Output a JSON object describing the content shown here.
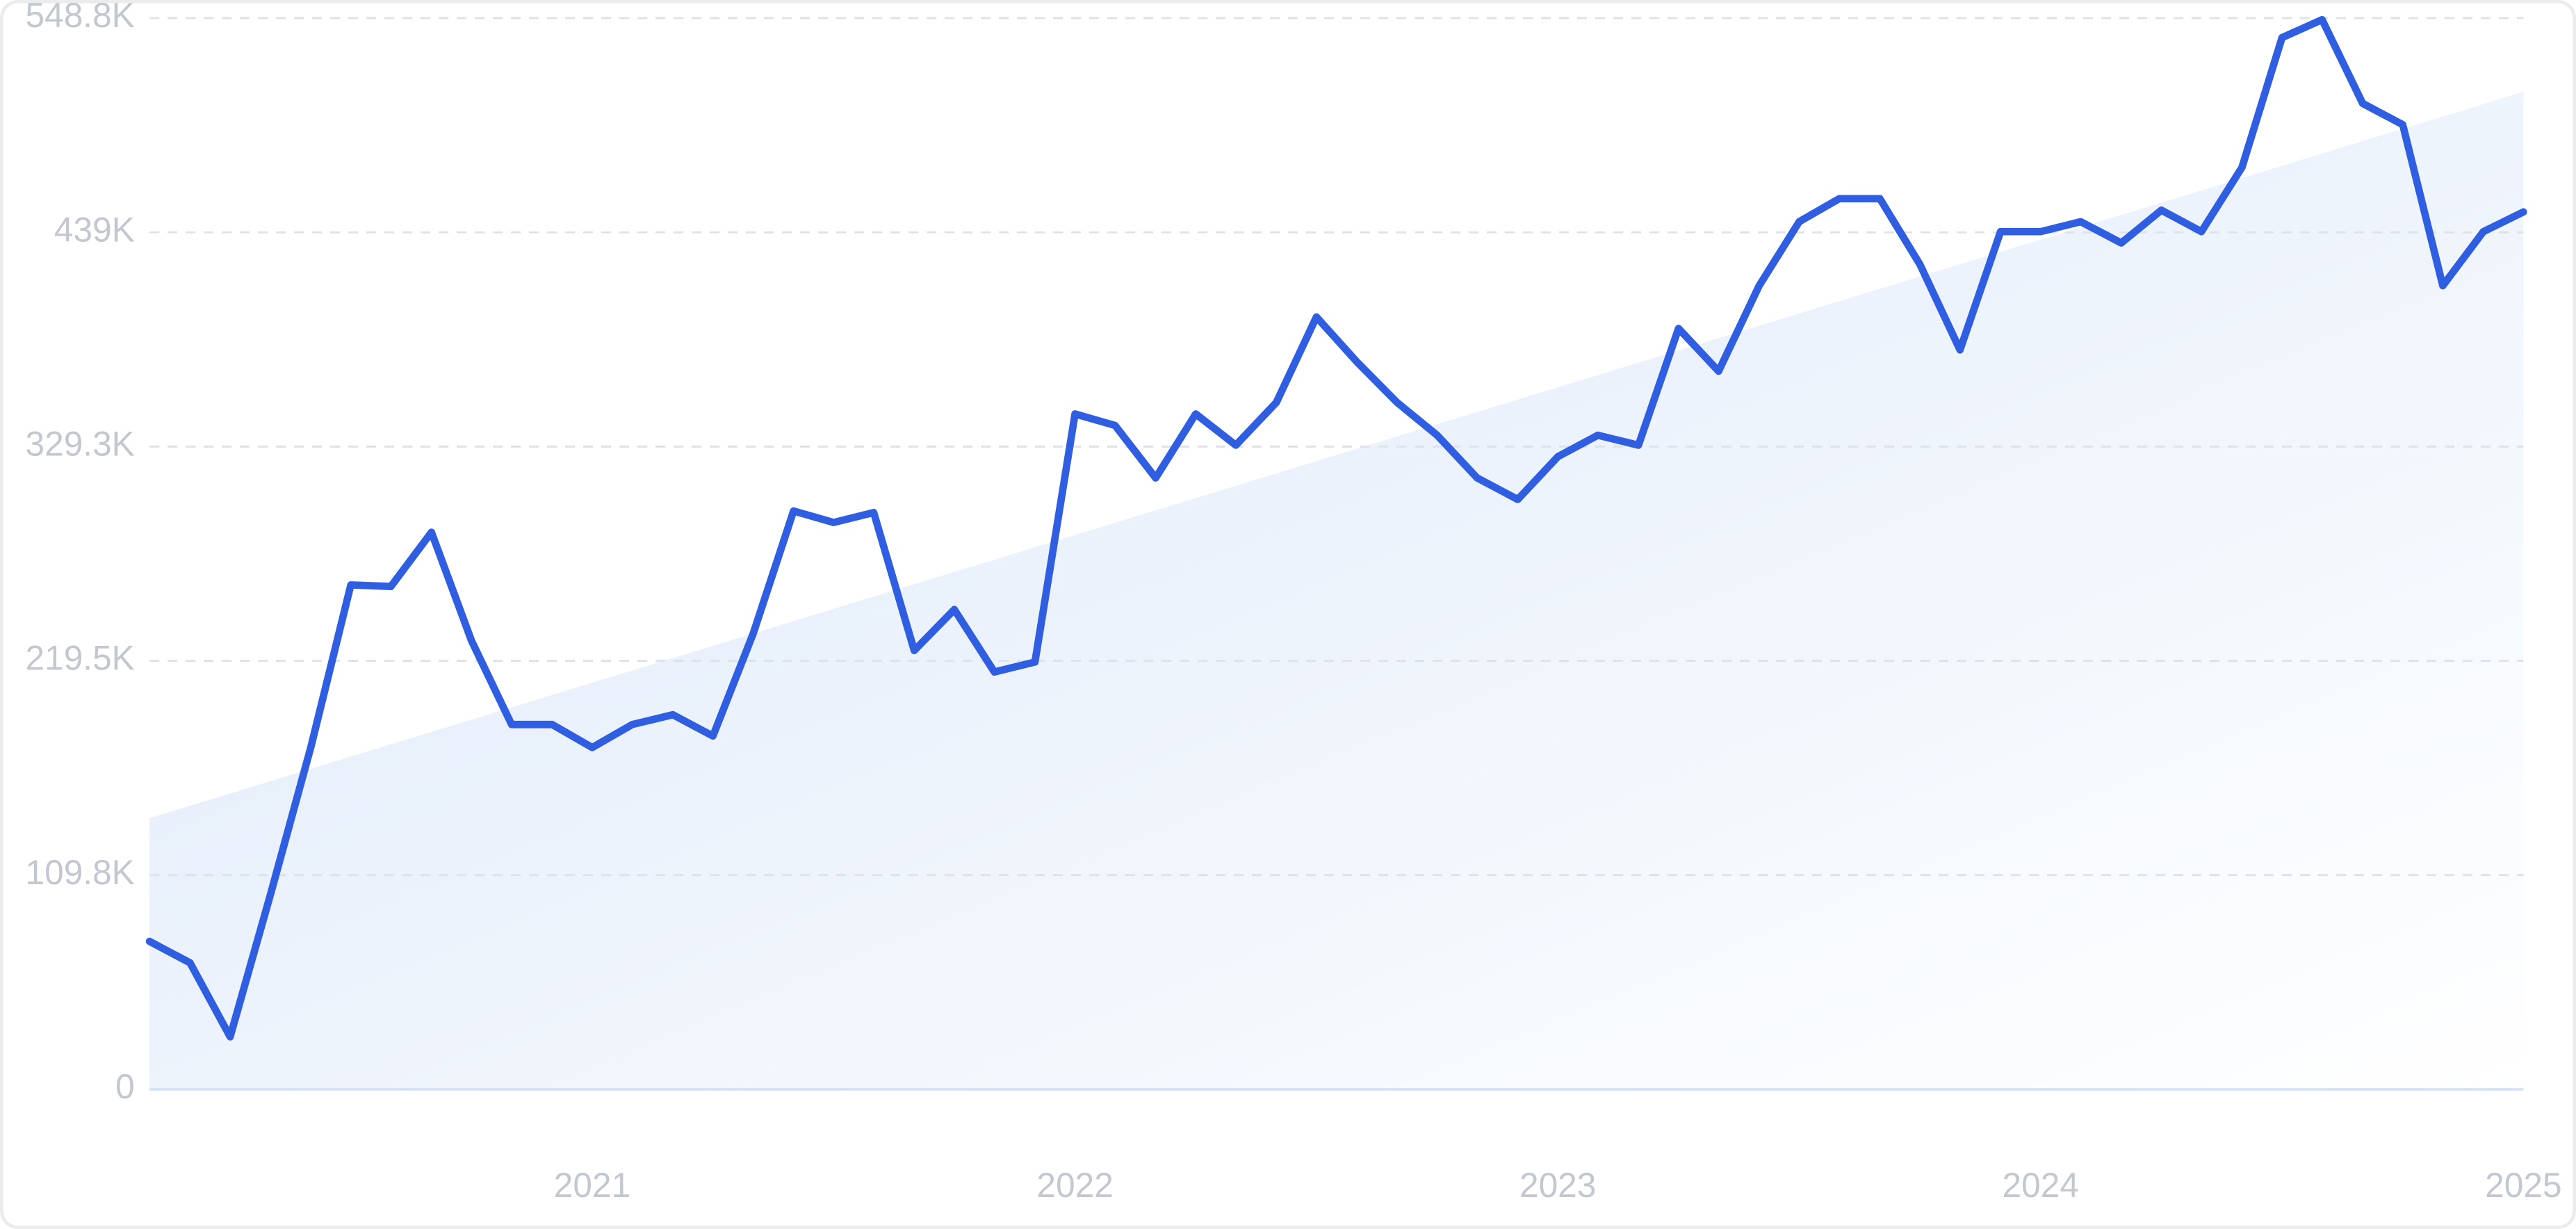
{
  "chart_data": {
    "type": "line",
    "x": [
      2020.083,
      2020.167,
      2020.25,
      2020.333,
      2020.417,
      2020.5,
      2020.583,
      2020.667,
      2020.75,
      2020.833,
      2020.917,
      2021,
      2021.083,
      2021.167,
      2021.25,
      2021.333,
      2021.417,
      2021.5,
      2021.583,
      2021.667,
      2021.75,
      2021.833,
      2021.917,
      2022,
      2022.083,
      2022.167,
      2022.25,
      2022.333,
      2022.417,
      2022.5,
      2022.583,
      2022.667,
      2022.75,
      2022.833,
      2022.917,
      2023,
      2023.083,
      2023.167,
      2023.25,
      2023.333,
      2023.417,
      2023.5,
      2023.583,
      2023.667,
      2023.75,
      2023.833,
      2023.917,
      2024,
      2024.083,
      2024.167,
      2024.25,
      2024.333,
      2024.417,
      2024.5,
      2024.583,
      2024.667,
      2024.75,
      2024.833,
      2024.917,
      2025
    ],
    "series": [
      {
        "color": "#2f5ee0",
        "values": [
          75800,
          64800,
          26900,
          99300,
          175100,
          258400,
          257600,
          285400,
          229800,
          186900,
          186900,
          175100,
          186900,
          191900,
          181000,
          233200,
          296300,
          290400,
          295500,
          224800,
          245800,
          213800,
          218900,
          346000,
          340100,
          313200,
          346000,
          330000,
          351900,
          395700,
          372900,
          351900,
          335100,
          313200,
          302200,
          324100,
          335100,
          330000,
          389800,
          367900,
          411700,
          444500,
          456300,
          456300,
          422600,
          378800,
          439400,
          439400,
          444500,
          433600,
          450400,
          439400,
          472300,
          538800,
          548000,
          505100,
          494200,
          411700,
          439400,
          449500
        ]
      }
    ],
    "trend": [
      138900,
      511000
    ],
    "trend_color": "#dce8f9",
    "xlim": [
      2020.083,
      2025
    ],
    "xticks": [
      2021,
      2022,
      2023,
      2024,
      2025
    ],
    "ylim": [
      0,
      548800
    ],
    "yticks": [
      0,
      {
        "value": 109760,
        "label": "109.8K"
      },
      {
        "value": 219520,
        "label": "219.5K"
      },
      {
        "value": 329280,
        "label": "329.3K"
      },
      {
        "value": 439040,
        "label": "439K"
      },
      {
        "value": 548800,
        "label": "548.8K"
      }
    ],
    "grid": true
  }
}
